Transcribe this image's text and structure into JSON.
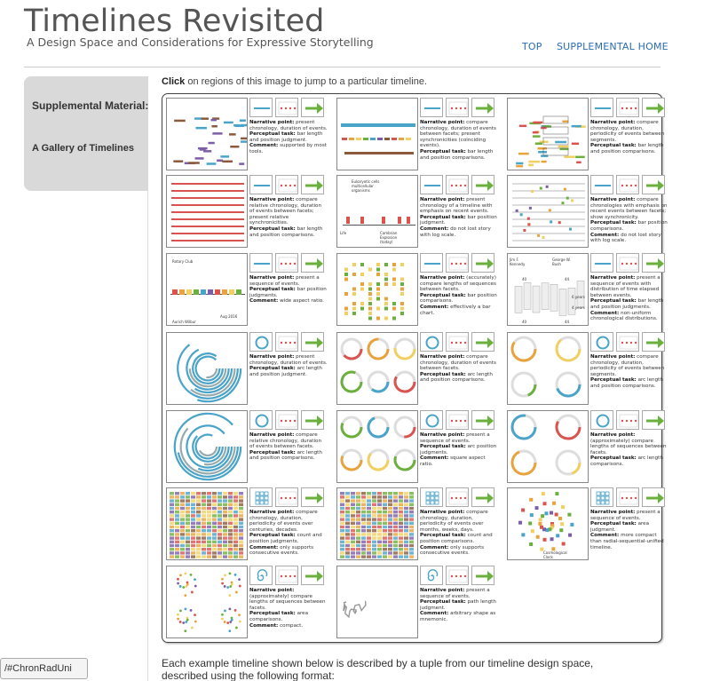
{
  "header": {
    "title": "Timelines Revisited",
    "subtitle": "A Design Space and Considerations for Expressive Storytelling",
    "nav": [
      {
        "label": "TOP"
      },
      {
        "label": "SUPPLEMENTAL HOME"
      }
    ]
  },
  "sidebar": {
    "heading": "Supplemental Material:",
    "subheading": "A Gallery of Timelines"
  },
  "instruction": {
    "bold": "Click",
    "rest": " on regions of this image to jump to a particular timeline."
  },
  "gallery": [
    [
      {
        "n": "present chronology, duration of events.",
        "p": "bar length and position judgment.",
        "c": "supported by most tools."
      },
      {
        "n": "compare chronology, duration of events between facets; present synchronicities (coinciding events).",
        "p": "bar length and position comparisons."
      },
      {
        "n": "compare chronology, duration, periodicity of events between segments.",
        "p": "bar length and position comparisons."
      }
    ],
    [
      {
        "n": "compare relative chronology, duration of events between facets; present relative synchronicities.",
        "p": "bar length and position comparisons."
      },
      {
        "n": "present chronology of a timeline with emphasis on recent events.",
        "p": "bar position judgment.",
        "c": "do not lost story with log scale."
      },
      {
        "n": "compare chronologies with emphasis on recent events between facets; show synchronicity.",
        "p": "bar position comparisons.",
        "c": "do not lost story with log scale."
      }
    ],
    [
      {
        "n": "present a sequence of events.",
        "p": "bar position judgments.",
        "c": "wide aspect ratio."
      },
      {
        "n": "(accurately) compare lengths of sequences between facets.",
        "p": "bar position comparisons.",
        "c": "effectively a bar chart."
      },
      {
        "n": "present a sequence of events with distribution of time elapsed between events.",
        "p": "bar length and position judgments.",
        "c": "non-uniform chronological distributions."
      }
    ],
    [
      {
        "n": "present chronology, duration of events.",
        "p": "arc length and position judgment."
      },
      {
        "n": "compare chronology, duration of events between facets.",
        "p": "arc length and position comparisons."
      },
      {
        "n": "compare chronology, duration, periodicity of events between segments.",
        "p": "arc length and position comparisons."
      }
    ],
    [
      {
        "n": "compare relative chronology, duration of events between facets.",
        "p": "arc length and position comparisons."
      },
      {
        "n": "present a sequence of events.",
        "p": "arc position judgments.",
        "c": "square aspect ratio."
      },
      {
        "n": "(approximately) compare lengths of sequences between facets.",
        "p": "arc length comparisons."
      }
    ],
    [
      {
        "n": "compare chronology, duration, periodicity of events over centuries, decades.",
        "p": "count and position judgments.",
        "c": "only supports consecutive events."
      },
      {
        "n": "compare chronology, duration, periodicity of events over months, weeks, days.",
        "p": "count and position comparisons.",
        "c": "only supports consecutive events."
      },
      {
        "n": "present a sequence of events.",
        "p": "area judgment.",
        "c": "more compact than radial-sequential-unified timeline."
      }
    ],
    [
      {
        "n": "(approximately) compare lengths of sequences between facets.",
        "p": "area comparisons.",
        "c": "compact."
      },
      {
        "n": "present a sequence of events.",
        "p": "path length judgment.",
        "c": "arbitrary shape as mnemonic."
      }
    ]
  ],
  "labels": {
    "narrative": "Narrative point:",
    "perceptual": "Perceptual task:",
    "comment": "Comment:"
  },
  "thumb_text": {
    "t21": [
      "Eukaryotic cells",
      "multicellular",
      "organisms",
      "Life",
      "Cambrian",
      "Explosion",
      "(today)"
    ],
    "t30": [
      "Rotary Club",
      "Aurich Wilbur",
      "Aug 2016"
    ],
    "t32": [
      "Jim F.",
      "Kennedy",
      "George W.",
      "Bush",
      "40",
      "44",
      "6 years",
      "4 years",
      "40",
      "44"
    ],
    "t52": [
      "Cosmological",
      "Clock"
    ]
  },
  "tab": {
    "label": "/#ChronRadUni"
  },
  "footer": {
    "line1": "Each example timeline shown below is described by a tuple from our timeline design space,",
    "line2": "described using the following format:"
  },
  "colors": {
    "link": "#2a6db2",
    "accent": "#4aa3c8",
    "red": "#d9534f",
    "green": "#6bb03c"
  }
}
